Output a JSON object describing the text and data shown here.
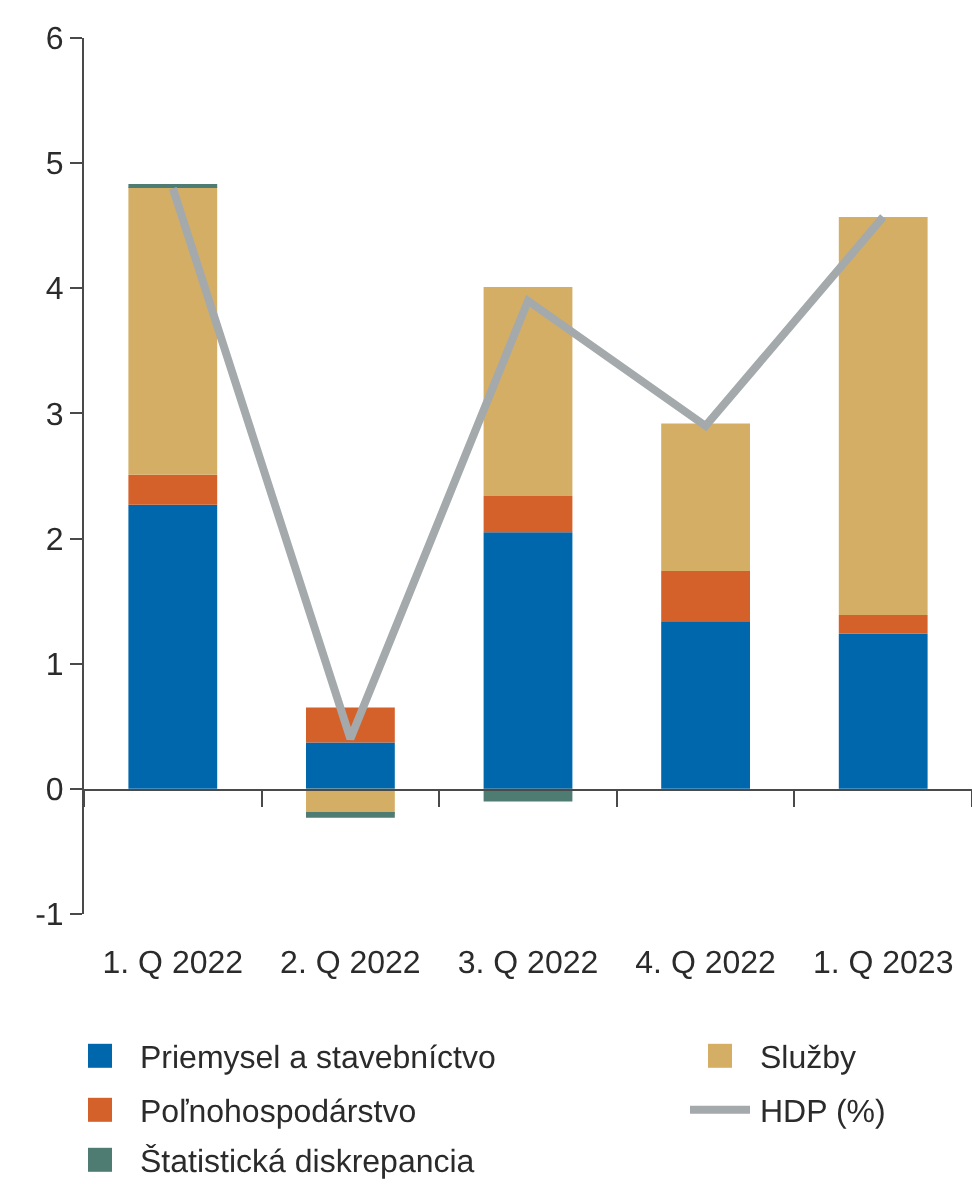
{
  "chart_data": {
    "type": "bar",
    "stacked": true,
    "categories": [
      "1. Q 2022",
      "2. Q 2022",
      "3. Q 2022",
      "4. Q 2022",
      "1. Q 2023"
    ],
    "series": [
      {
        "name": "Priemysel a stavebníctvo",
        "color": "#0067ac",
        "values": [
          2.27,
          0.37,
          2.05,
          1.34,
          1.24
        ]
      },
      {
        "name": "Poľnohospodárstvo",
        "color": "#d4602a",
        "values": [
          0.24,
          0.28,
          0.29,
          0.4,
          0.15
        ]
      },
      {
        "name": "Služby",
        "color": "#d5ae66",
        "values": [
          2.3,
          -0.2,
          1.67,
          1.18,
          3.18
        ]
      },
      {
        "name": "Štatistická diskrepancia",
        "color": "#4f7c72",
        "values": [
          0.02,
          -0.03,
          -0.1,
          0,
          0
        ]
      },
      {
        "name": "HDP (%)",
        "type": "line",
        "color": "#a4a9ac",
        "values": [
          4.8,
          0.4,
          3.9,
          2.9,
          4.57
        ]
      }
    ],
    "ylim": [
      -1,
      6
    ],
    "yticks": [
      -1,
      0,
      1,
      2,
      3,
      4,
      5,
      6
    ],
    "legend": "bottom",
    "line_style": "solid"
  }
}
